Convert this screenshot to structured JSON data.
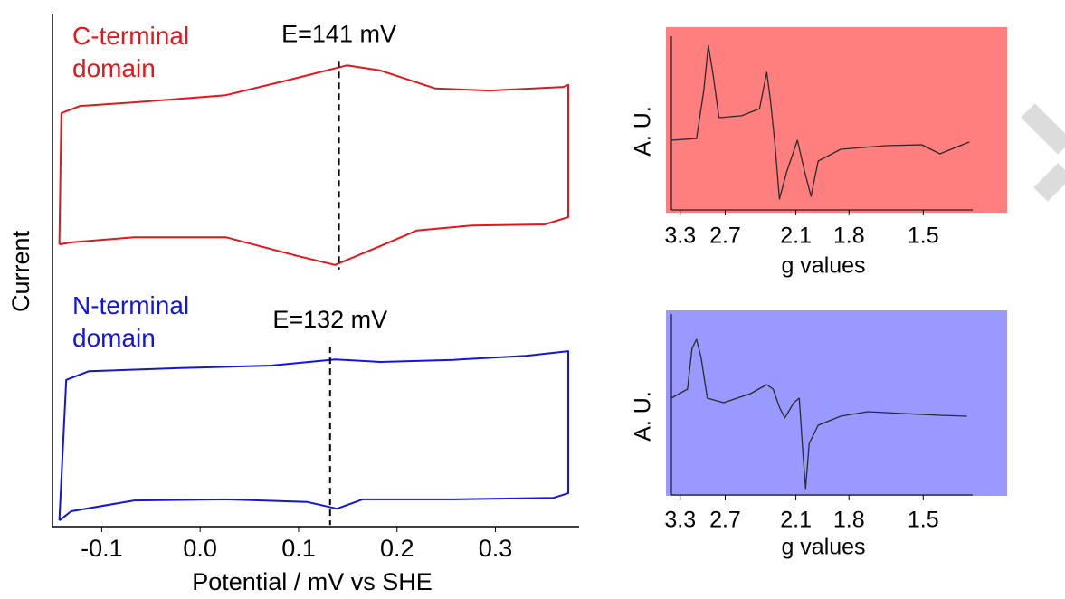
{
  "chart_data": [
    {
      "type": "line",
      "xlabel": "Potential / mV vs SHE",
      "ylabel": "Current",
      "xlim": [
        -0.15,
        0.385
      ],
      "ylim": [
        0,
        100
      ],
      "xticks": [
        -0.1,
        {
          "value": 0,
          "label": "0.0"
        },
        0.1,
        0.2,
        0.3
      ],
      "series": [
        {
          "name": "C-terminal domain",
          "color": "#e8141c",
          "midpoint": 0.141,
          "midpoint_label": "E=141 mV",
          "x": [
            -0.143,
            -0.141,
            -0.122,
            -0.067,
            0.026,
            0.091,
            0.149,
            0.183,
            0.239,
            0.294,
            0.369,
            0.374,
            0.374,
            0.35,
            0.276,
            0.22,
            0.183,
            0.137,
            0.1,
            0.026,
            -0.067,
            -0.131,
            -0.143
          ],
          "values": [
            55.0,
            80.6,
            82.0,
            82.7,
            84.1,
            87.1,
            89.9,
            88.9,
            85.4,
            85.0,
            85.7,
            86.1,
            60.3,
            58.9,
            58.7,
            57.7,
            54.7,
            51.0,
            52.7,
            56.4,
            56.4,
            55.4,
            55.0
          ]
        },
        {
          "name": "N-terminal domain",
          "color": "#1414e0",
          "midpoint": 0.132,
          "midpoint_label": "E=132 mV",
          "x": [
            -0.143,
            -0.136,
            -0.113,
            -0.02,
            0.072,
            0.137,
            0.183,
            0.257,
            0.331,
            0.374,
            0.374,
            0.359,
            0.257,
            0.165,
            0.139,
            0.109,
            0.026,
            -0.067,
            -0.131,
            -0.143
          ],
          "values": [
            1.2,
            28.6,
            30.3,
            30.9,
            31.4,
            32.6,
            32.1,
            32.5,
            33.3,
            34.2,
            6.5,
            5.6,
            5.3,
            5.3,
            3.5,
            4.8,
            5.3,
            5.1,
            3.0,
            1.2
          ]
        }
      ]
    },
    {
      "type": "line",
      "xlabel": "g values",
      "ylabel": "A. U.",
      "xscale": "reciprocal",
      "background": "#ff7f7f",
      "xlim": [
        3.45,
        1.35
      ],
      "ylim": [
        0,
        100
      ],
      "xticks": [
        3.3,
        2.7,
        2.1,
        1.8,
        1.5
      ],
      "x": [
        3.451,
        3.053,
        2.956,
        2.898,
        2.843,
        2.769,
        2.532,
        2.371,
        2.312,
        2.283,
        2.248,
        2.215,
        2.163,
        2.09,
        2.044,
        2.005,
        1.963,
        1.841,
        1.638,
        1.505,
        1.446,
        1.359
      ],
      "series": [
        {
          "color": "#2a2a2a",
          "values": [
            40.1,
            41.1,
            68.8,
            94.8,
            79.2,
            53.1,
            54.2,
            58.3,
            79.2,
            63.5,
            37.5,
            6.3,
            21.9,
            40.1,
            21.9,
            7.8,
            28.1,
            34.9,
            37.0,
            37.5,
            32.3,
            39.1
          ]
        }
      ]
    },
    {
      "type": "line",
      "xlabel": "g values",
      "ylabel": "A. U.",
      "xscale": "reciprocal",
      "background": "#9999ff",
      "xlim": [
        3.45,
        1.35
      ],
      "ylim": [
        0,
        100
      ],
      "xticks": [
        3.3,
        2.7,
        2.1,
        1.8,
        1.5
      ],
      "x": [
        3.451,
        3.185,
        3.118,
        3.053,
        2.992,
        2.91,
        2.718,
        2.449,
        2.312,
        2.262,
        2.215,
        2.176,
        2.114,
        2.078,
        2.055,
        2.038,
        2.016,
        1.963,
        1.841,
        1.714,
        1.569,
        1.446,
        1.366
      ],
      "series": [
        {
          "color": "#2a2a2a",
          "values": [
            53.5,
            58.5,
            81,
            86,
            76,
            53.5,
            51,
            56,
            61,
            58.5,
            48.5,
            42.5,
            51,
            53.5,
            23.5,
            3.5,
            28.5,
            38.5,
            43.5,
            46,
            45,
            44,
            43.5
          ]
        }
      ]
    }
  ]
}
